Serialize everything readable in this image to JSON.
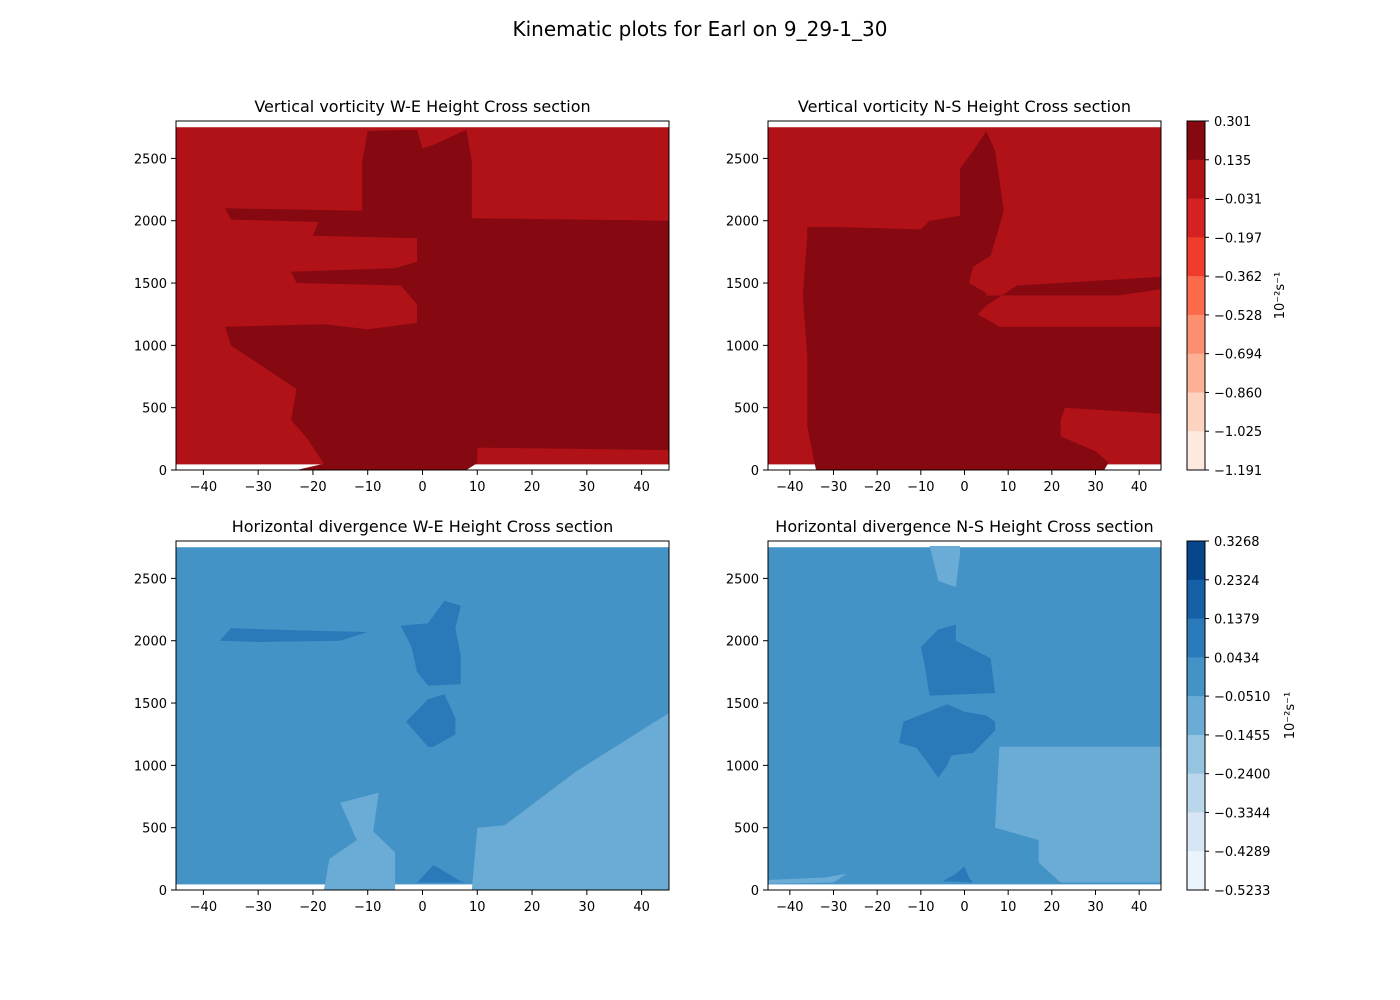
{
  "figure": {
    "suptitle": "Kinematic plots for Earl on 9_29-1_30"
  },
  "chart_data": [
    {
      "type": "heatmap",
      "title": "Vertical vorticity W-E Height Cross section",
      "xlim": [
        -45,
        45
      ],
      "ylim": [
        0,
        2800
      ],
      "xticks": [
        -40,
        -30,
        -20,
        -10,
        0,
        10,
        20,
        30,
        40
      ],
      "yticks": [
        0,
        500,
        1000,
        1500,
        2000,
        2500
      ],
      "grid": false,
      "background_color": "#b11218",
      "regions": [
        {
          "level": "0.135 to 0.301",
          "color": "#860811",
          "points": [
            [
              -23,
              0
            ],
            [
              -18,
              50
            ],
            [
              -21,
              250
            ],
            [
              -24,
              400
            ],
            [
              -23,
              650
            ],
            [
              -35,
              1000
            ],
            [
              -36,
              1150
            ],
            [
              -18,
              1170
            ],
            [
              -10,
              1130
            ],
            [
              -1,
              1180
            ],
            [
              -1,
              1330
            ],
            [
              -4,
              1480
            ],
            [
              -23,
              1500
            ],
            [
              -24,
              1590
            ],
            [
              -5,
              1620
            ],
            [
              -1,
              1670
            ],
            [
              -1,
              1860
            ],
            [
              -20,
              1880
            ],
            [
              -19,
              1990
            ],
            [
              -35,
              2010
            ],
            [
              -36,
              2100
            ],
            [
              -11,
              2080
            ],
            [
              -11,
              2470
            ],
            [
              -10,
              2720
            ],
            [
              -1,
              2730
            ],
            [
              0,
              2580
            ],
            [
              2,
              2610
            ],
            [
              8,
              2730
            ],
            [
              9,
              2480
            ],
            [
              9,
              2020
            ],
            [
              45,
              2000
            ],
            [
              45,
              160
            ],
            [
              10,
              180
            ],
            [
              10,
              55
            ],
            [
              8,
              0
            ]
          ]
        }
      ]
    },
    {
      "type": "heatmap",
      "title": "Vertical vorticity N-S Height Cross section",
      "xlim": [
        -45,
        45
      ],
      "ylim": [
        0,
        2800
      ],
      "xticks": [
        -40,
        -30,
        -20,
        -10,
        0,
        10,
        20,
        30,
        40
      ],
      "yticks": [
        0,
        500,
        1000,
        1500,
        2000,
        2500
      ],
      "grid": false,
      "background_color": "#b11218",
      "regions": [
        {
          "level": "0.135 to 0.301",
          "color": "#860811",
          "points": [
            [
              -34,
              0
            ],
            [
              -36,
              350
            ],
            [
              -36,
              900
            ],
            [
              -37,
              1400
            ],
            [
              -36,
              1900
            ],
            [
              -36,
              1950
            ],
            [
              -32,
              1950
            ],
            [
              -30,
              1950
            ],
            [
              -10,
              1930
            ],
            [
              -8,
              2000
            ],
            [
              -1,
              2040
            ],
            [
              -1,
              2420
            ],
            [
              2,
              2560
            ],
            [
              5,
              2720
            ],
            [
              7,
              2560
            ],
            [
              8,
              2330
            ],
            [
              9,
              2080
            ],
            [
              6,
              1720
            ],
            [
              2,
              1630
            ],
            [
              1,
              1500
            ],
            [
              5,
              1420
            ],
            [
              5,
              1400
            ],
            [
              20,
              1400
            ],
            [
              35,
              1400
            ],
            [
              45,
              1450
            ],
            [
              45,
              1550
            ],
            [
              12,
              1480
            ],
            [
              5,
              1320
            ],
            [
              3,
              1250
            ],
            [
              8,
              1150
            ],
            [
              45,
              1150
            ],
            [
              45,
              450
            ],
            [
              23,
              500
            ],
            [
              22,
              400
            ],
            [
              22,
              270
            ],
            [
              30,
              150
            ],
            [
              33,
              60
            ],
            [
              32,
              0
            ]
          ]
        }
      ]
    },
    {
      "type": "heatmap",
      "title": "Horizontal divergence W-E Height Cross section",
      "xlim": [
        -45,
        45
      ],
      "ylim": [
        0,
        2800
      ],
      "xticks": [
        -40,
        -30,
        -20,
        -10,
        0,
        10,
        20,
        30,
        40
      ],
      "yticks": [
        0,
        500,
        1000,
        1500,
        2000,
        2500
      ],
      "grid": false,
      "background_color": "#4393c7",
      "regions": [
        {
          "level": "-0.1455 to -0.0510",
          "color": "#6aacd6",
          "points": [
            [
              9,
              0
            ],
            [
              10,
              500
            ],
            [
              15,
              520
            ],
            [
              28,
              950
            ],
            [
              45,
              1420
            ],
            [
              45,
              0
            ]
          ]
        },
        {
          "level": "-0.1455 to -0.0510",
          "color": "#6aacd6",
          "points": [
            [
              -18,
              0
            ],
            [
              -17,
              250
            ],
            [
              -12,
              400
            ],
            [
              -15,
              700
            ],
            [
              -8,
              780
            ],
            [
              -9,
              470
            ],
            [
              -5,
              300
            ],
            [
              -5,
              0
            ]
          ]
        },
        {
          "level": "0.0434 to 0.1379",
          "color": "#2a7ab9",
          "points": [
            [
              -35,
              2100
            ],
            [
              -20,
              2080
            ],
            [
              -10,
              2070
            ],
            [
              -15,
              2000
            ],
            [
              -30,
              1990
            ],
            [
              -37,
              2000
            ]
          ]
        },
        {
          "level": "0.0434 to 0.1379",
          "color": "#2a7ab9",
          "points": [
            [
              -4,
              2120
            ],
            [
              1,
              2140
            ],
            [
              4,
              2320
            ],
            [
              7,
              2280
            ],
            [
              6,
              2100
            ],
            [
              7,
              1880
            ],
            [
              7,
              1650
            ],
            [
              1,
              1640
            ],
            [
              -1,
              1750
            ],
            [
              -2,
              1950
            ]
          ]
        },
        {
          "level": "0.0434 to 0.1379",
          "color": "#2a7ab9",
          "points": [
            [
              -3,
              1350
            ],
            [
              1,
              1530
            ],
            [
              4,
              1570
            ],
            [
              6,
              1380
            ],
            [
              6,
              1250
            ],
            [
              2,
              1150
            ],
            [
              1,
              1150
            ],
            [
              -1,
              1250
            ]
          ]
        },
        {
          "level": "0.0434 to 0.1379",
          "color": "#2a7ab9",
          "points": [
            [
              -1,
              60
            ],
            [
              2,
              200
            ],
            [
              7,
              70
            ],
            [
              8,
              60
            ]
          ]
        }
      ]
    },
    {
      "type": "heatmap",
      "title": "Horizontal divergence N-S Height Cross section",
      "xlim": [
        -45,
        45
      ],
      "ylim": [
        0,
        2800
      ],
      "xticks": [
        -40,
        -30,
        -20,
        -10,
        0,
        10,
        20,
        30,
        40
      ],
      "yticks": [
        0,
        500,
        1000,
        1500,
        2000,
        2500
      ],
      "grid": false,
      "background_color": "#4393c7",
      "regions": [
        {
          "level": "-0.1455 to -0.0510",
          "color": "#6aacd6",
          "points": [
            [
              22,
              60
            ],
            [
              17,
              220
            ],
            [
              17,
              400
            ],
            [
              7,
              500
            ],
            [
              8,
              1150
            ],
            [
              10,
              1150
            ],
            [
              45,
              1150
            ],
            [
              45,
              60
            ]
          ]
        },
        {
          "level": "-0.1455 to -0.0510",
          "color": "#6aacd6",
          "points": [
            [
              -45,
              50
            ],
            [
              -30,
              60
            ],
            [
              -27,
              130
            ],
            [
              -32,
              100
            ],
            [
              -45,
              80
            ]
          ]
        },
        {
          "level": "-0.1455 to -0.0510",
          "color": "#6aacd6",
          "points": [
            [
              -8,
              2760
            ],
            [
              -6,
              2480
            ],
            [
              -2,
              2430
            ],
            [
              -1,
              2700
            ],
            [
              -1,
              2760
            ]
          ]
        },
        {
          "level": "0.0434 to 0.1379",
          "color": "#2a7ab9",
          "points": [
            [
              -10,
              1950
            ],
            [
              -6,
              2090
            ],
            [
              -2,
              2130
            ],
            [
              -2,
              2000
            ],
            [
              6,
              1860
            ],
            [
              7,
              1580
            ],
            [
              -8,
              1560
            ],
            [
              -9,
              1780
            ]
          ]
        },
        {
          "level": "0.0434 to 0.1379",
          "color": "#2a7ab9",
          "points": [
            [
              -15,
              1180
            ],
            [
              -14,
              1350
            ],
            [
              -4,
              1490
            ],
            [
              0,
              1430
            ],
            [
              5,
              1400
            ],
            [
              7,
              1350
            ],
            [
              7,
              1280
            ],
            [
              2,
              1100
            ],
            [
              -3,
              1080
            ],
            [
              -4,
              1000
            ],
            [
              -6,
              900
            ],
            [
              -8,
              1000
            ],
            [
              -11,
              1140
            ]
          ]
        },
        {
          "level": "0.0434 to 0.1379",
          "color": "#2a7ab9",
          "points": [
            [
              -5,
              70
            ],
            [
              -2,
              130
            ],
            [
              0,
              190
            ],
            [
              1,
              100
            ],
            [
              2,
              60
            ]
          ]
        }
      ]
    }
  ],
  "colorbars": [
    {
      "label": "10⁻²s⁻¹",
      "tick_labels": [
        "0.301",
        "0.135",
        "−0.031",
        "−0.197",
        "−0.362",
        "−0.528",
        "−0.694",
        "−0.860",
        "−1.025",
        "−1.191"
      ],
      "colors": [
        "#860811",
        "#b11218",
        "#d42122",
        "#f03c2c",
        "#fb6a4a",
        "#fc8f6f",
        "#fcb195",
        "#fdd2bf",
        "#fee9df"
      ]
    },
    {
      "label": "10⁻²s⁻¹",
      "tick_labels": [
        "0.3268",
        "0.2324",
        "0.1379",
        "0.0434",
        "−0.0510",
        "−0.1455",
        "−0.2400",
        "−0.3344",
        "−0.4289",
        "−0.5233"
      ],
      "colors": [
        "#08468c",
        "#1660a8",
        "#2a7ab9",
        "#4393c7",
        "#6aacd6",
        "#94c4df",
        "#bad6eb",
        "#d7e6f5",
        "#ebf3fb"
      ]
    }
  ]
}
